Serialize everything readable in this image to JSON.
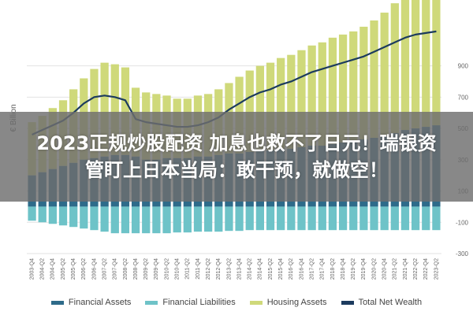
{
  "overlay": {
    "line1": "2023正规炒股配资 加息也救不了日元！瑞银资",
    "line2": "管盯上日本当局：敢干预，就做空！"
  },
  "colors": {
    "financial_assets": "#2e6b8a",
    "financial_liabilities": "#6ec3c8",
    "housing_assets": "#cfd97a",
    "total_net_wealth": "#1c3b5e",
    "grid": "#e2e2e2"
  },
  "chart_data": {
    "type": "area",
    "ylabel": "€ Billion",
    "y_axis_side": "right",
    "ylim": [
      -300,
      1200
    ],
    "yticks": [
      -300,
      -100,
      100,
      300,
      500,
      700,
      900
    ],
    "ytick_labels": [
      "-300",
      "-100",
      "100",
      "300",
      "500",
      "700",
      "900"
    ],
    "grid": true,
    "legend_position": "bottom",
    "x": [
      "2003-Q4",
      "2004-Q2",
      "2004-Q4",
      "2005-Q2",
      "2005-Q4",
      "2006-Q2",
      "2006-Q4",
      "2007-Q2",
      "2007-Q4",
      "2008-Q2",
      "2008-Q4",
      "2009-Q2",
      "2009-Q4",
      "2010-Q2",
      "2010-Q4",
      "2011-Q2",
      "2011-Q4",
      "2012-Q2",
      "2012-Q4",
      "2013-Q2",
      "2013-Q4",
      "2014-Q2",
      "2014-Q4",
      "2015-Q2",
      "2015-Q4",
      "2016-Q2",
      "2016-Q4",
      "2017-Q2",
      "2017-Q4",
      "2018-Q2",
      "2018-Q4",
      "2019-Q2",
      "2019-Q4",
      "2020-Q2",
      "2020-Q4",
      "2021-Q2",
      "2021-Q4",
      "2022-Q2",
      "2022-Q4",
      "2023-Q2"
    ],
    "series": [
      {
        "name": "Financial Assets",
        "kind": "area",
        "values": [
          200,
          220,
          240,
          260,
          280,
          300,
          310,
          320,
          330,
          330,
          320,
          300,
          300,
          310,
          310,
          310,
          320,
          320,
          330,
          340,
          340,
          350,
          360,
          360,
          370,
          370,
          380,
          390,
          390,
          400,
          410,
          420,
          430,
          440,
          450,
          470,
          490,
          500,
          510,
          520
        ]
      },
      {
        "name": "Financial Liabilities",
        "kind": "area",
        "values": [
          -90,
          -100,
          -110,
          -120,
          -130,
          -140,
          -150,
          -160,
          -170,
          -170,
          -170,
          -170,
          -170,
          -170,
          -165,
          -165,
          -160,
          -160,
          -160,
          -155,
          -155,
          -150,
          -150,
          -150,
          -150,
          -150,
          -150,
          -150,
          -150,
          -150,
          -150,
          -150,
          -150,
          -150,
          -150,
          -150,
          -150,
          -150,
          -150,
          -150
        ]
      },
      {
        "name": "Housing Assets",
        "kind": "area",
        "values": [
          340,
          360,
          390,
          420,
          470,
          520,
          570,
          600,
          580,
          560,
          440,
          430,
          420,
          400,
          380,
          380,
          390,
          400,
          420,
          450,
          490,
          520,
          540,
          560,
          580,
          600,
          620,
          640,
          660,
          680,
          690,
          700,
          720,
          750,
          790,
          830,
          860,
          880,
          890,
          890
        ]
      },
      {
        "name": "Total Net Wealth",
        "kind": "line",
        "values": [
          460,
          490,
          520,
          550,
          600,
          660,
          700,
          710,
          700,
          680,
          560,
          540,
          530,
          520,
          510,
          510,
          520,
          540,
          570,
          620,
          660,
          700,
          730,
          750,
          780,
          800,
          830,
          860,
          880,
          900,
          920,
          940,
          960,
          990,
          1020,
          1050,
          1080,
          1100,
          1110,
          1120
        ]
      }
    ]
  }
}
